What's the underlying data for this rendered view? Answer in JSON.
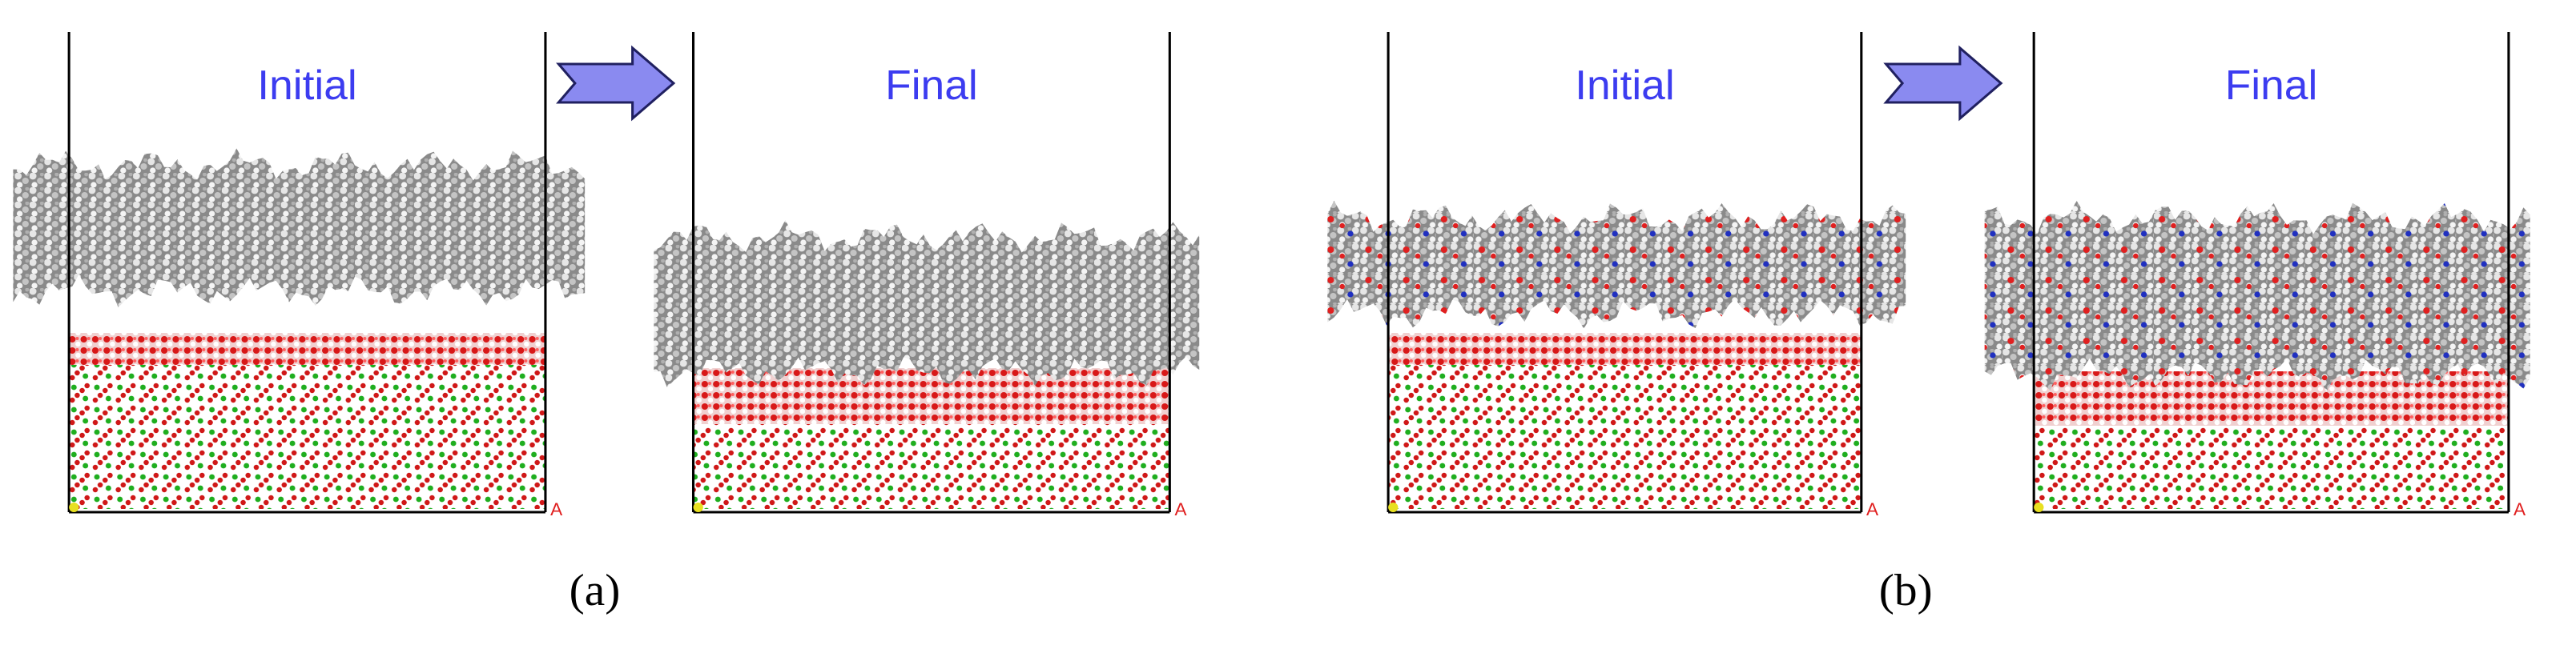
{
  "panels": [
    {
      "title": "Initial",
      "axis_label": "A"
    },
    {
      "title": "Final",
      "axis_label": "A"
    },
    {
      "title": "Initial",
      "axis_label": "A"
    },
    {
      "title": "Final",
      "axis_label": "A"
    }
  ],
  "captions": [
    "(a)",
    "(b)"
  ]
}
